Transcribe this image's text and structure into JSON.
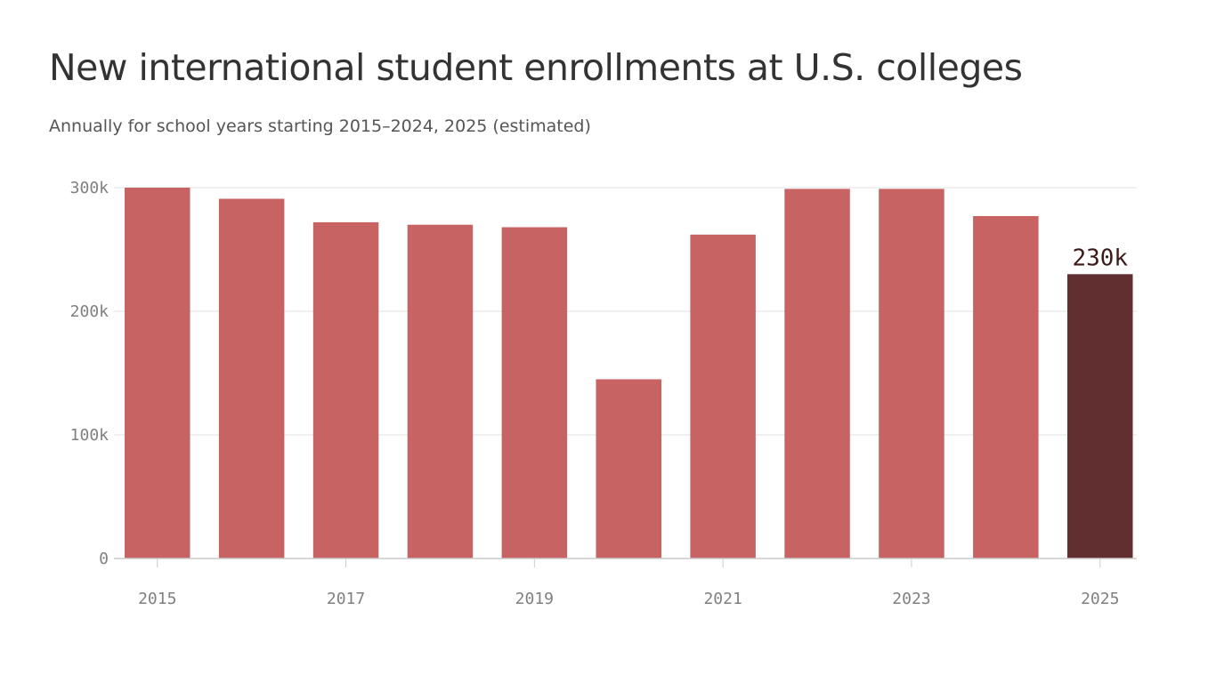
{
  "title": "New international student enrollments at U.S. colleges",
  "subtitle": "Annually for school years starting 2015–2024, 2025 (estimated)",
  "colors": {
    "bar": "#c86363",
    "highlight": "#622f31",
    "grid": "#e1e1e1",
    "axis": "#cccccc"
  },
  "chart_data": {
    "type": "bar",
    "title": "New international student enrollments at U.S. colleges",
    "subtitle": "Annually for school years starting 2015–2024, 2025 (estimated)",
    "categories": [
      "2015",
      "2016",
      "2017",
      "2018",
      "2019",
      "2020",
      "2021",
      "2022",
      "2023",
      "2024",
      "2025"
    ],
    "values": [
      300000,
      291000,
      272000,
      270000,
      268000,
      145000,
      262000,
      299000,
      299000,
      277000,
      230000
    ],
    "highlight_index": 10,
    "highlight_label": "230k",
    "ylim": [
      0,
      300000
    ],
    "yticks": [
      0,
      100000,
      200000,
      300000
    ],
    "ytick_labels": [
      "0",
      "100k",
      "200k",
      "300k"
    ],
    "xtick_labels": [
      "2015",
      "2017",
      "2019",
      "2021",
      "2023",
      "2025"
    ],
    "grid": true,
    "legend": "none"
  }
}
